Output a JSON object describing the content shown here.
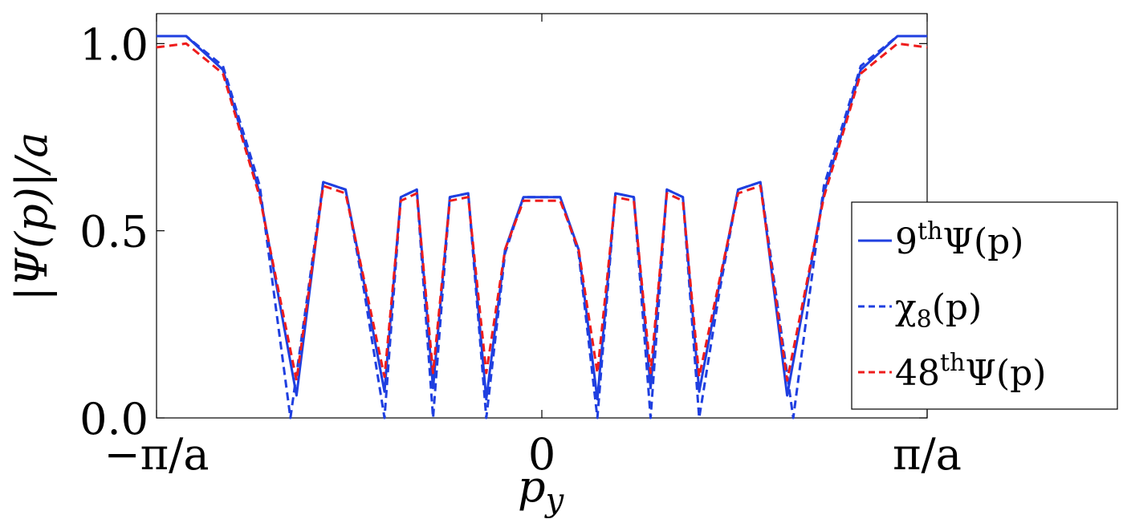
{
  "chart_data": {
    "type": "line",
    "xlabel": "p_y",
    "ylabel": "|Ψ(p)|/a",
    "x_ticks": [
      {
        "value": -3.14159,
        "label": "−π/a"
      },
      {
        "value": 0,
        "label": "0"
      },
      {
        "value": 3.14159,
        "label": "π/a"
      }
    ],
    "y_ticks": [
      {
        "value": 0.0,
        "label": "0.0"
      },
      {
        "value": 0.5,
        "label": "0.5"
      },
      {
        "value": 1.0,
        "label": "1.0"
      }
    ],
    "xlim": [
      -3.14159,
      3.14159
    ],
    "ylim": [
      0,
      1.08
    ],
    "grid": false,
    "legend_position": "right",
    "series": [
      {
        "name": "9thΨ(p)",
        "legend_main": "9",
        "legend_sup": "th",
        "legend_tail": "Ψ(p)",
        "color": "#1f3fe0",
        "dash": "solid",
        "x": [
          -3.1416,
          -2.9,
          -2.6,
          -2.3,
          -2.0,
          -1.782,
          -1.6,
          -1.45,
          -1.283,
          -1.15,
          -1.02,
          -0.887,
          -0.75,
          -0.6,
          -0.453,
          -0.3,
          -0.15,
          0.0,
          0.15,
          0.3,
          0.453,
          0.6,
          0.75,
          0.887,
          1.02,
          1.15,
          1.283,
          1.45,
          1.6,
          1.782,
          2.0,
          2.3,
          2.6,
          2.9,
          3.1416
        ],
        "y": [
          1.02,
          1.02,
          0.93,
          0.6,
          0.06,
          0.63,
          0.61,
          0.36,
          0.07,
          0.59,
          0.61,
          0.08,
          0.59,
          0.6,
          0.05,
          0.45,
          0.59,
          0.59,
          0.59,
          0.45,
          0.05,
          0.6,
          0.59,
          0.08,
          0.61,
          0.59,
          0.07,
          0.36,
          0.61,
          0.63,
          0.06,
          0.6,
          0.93,
          1.02,
          1.02
        ]
      },
      {
        "name": "χ8(p)",
        "legend_main": "χ",
        "legend_sub": "8",
        "legend_tail": "(p)",
        "color": "#1f3fe0",
        "dash": "dashed",
        "x": [
          -3.1416,
          -2.9,
          -2.6,
          -2.3,
          -2.05,
          -1.782,
          -1.6,
          -1.45,
          -1.283,
          -1.15,
          -1.02,
          -0.887,
          -0.75,
          -0.6,
          -0.453,
          -0.3,
          -0.15,
          0.0,
          0.15,
          0.3,
          0.453,
          0.6,
          0.75,
          0.887,
          1.02,
          1.15,
          1.283,
          1.45,
          1.6,
          1.782,
          2.05,
          2.3,
          2.6,
          2.9,
          3.1416
        ],
        "y": [
          1.02,
          1.02,
          0.94,
          0.62,
          0.0,
          0.63,
          0.61,
          0.34,
          0.0,
          0.59,
          0.61,
          0.0,
          0.59,
          0.6,
          0.0,
          0.44,
          0.59,
          0.59,
          0.59,
          0.44,
          0.0,
          0.6,
          0.59,
          0.0,
          0.61,
          0.59,
          0.0,
          0.34,
          0.61,
          0.63,
          0.0,
          0.62,
          0.94,
          1.02,
          1.02
        ]
      },
      {
        "name": "48thΨ(p)",
        "legend_main": "48",
        "legend_sup": "th",
        "legend_tail": "Ψ(p)",
        "color": "#ee1c1c",
        "dash": "dashed",
        "x": [
          -3.1416,
          -2.9,
          -2.6,
          -2.3,
          -2.0,
          -1.782,
          -1.6,
          -1.45,
          -1.283,
          -1.15,
          -1.02,
          -0.887,
          -0.75,
          -0.6,
          -0.453,
          -0.3,
          -0.15,
          0.0,
          0.15,
          0.3,
          0.453,
          0.6,
          0.75,
          0.887,
          1.02,
          1.15,
          1.283,
          1.45,
          1.6,
          1.782,
          2.0,
          2.3,
          2.6,
          2.9,
          3.1416
        ],
        "y": [
          0.99,
          1.0,
          0.92,
          0.59,
          0.1,
          0.62,
          0.6,
          0.37,
          0.11,
          0.58,
          0.6,
          0.12,
          0.58,
          0.59,
          0.12,
          0.45,
          0.58,
          0.58,
          0.58,
          0.45,
          0.12,
          0.59,
          0.58,
          0.12,
          0.6,
          0.58,
          0.11,
          0.37,
          0.6,
          0.62,
          0.1,
          0.59,
          0.92,
          1.0,
          0.99
        ]
      }
    ]
  }
}
